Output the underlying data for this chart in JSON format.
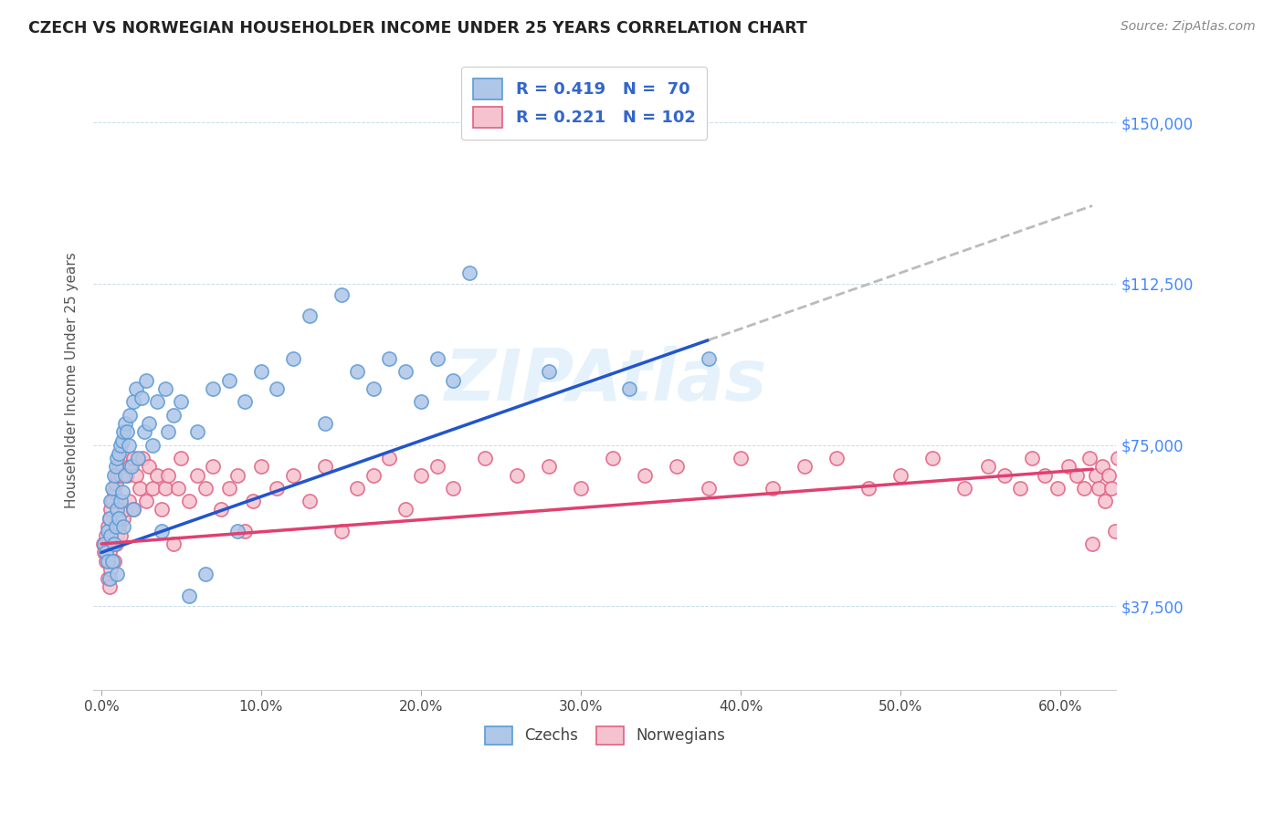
{
  "title": "CZECH VS NORWEGIAN HOUSEHOLDER INCOME UNDER 25 YEARS CORRELATION CHART",
  "source": "Source: ZipAtlas.com",
  "ylabel": "Householder Income Under 25 years",
  "xlabel_ticks": [
    "0.0%",
    "10.0%",
    "20.0%",
    "30.0%",
    "40.0%",
    "50.0%",
    "60.0%"
  ],
  "xlabel_vals": [
    0.0,
    0.1,
    0.2,
    0.3,
    0.4,
    0.5,
    0.6
  ],
  "ytick_labels": [
    "$37,500",
    "$75,000",
    "$112,500",
    "$150,000"
  ],
  "ytick_vals": [
    37500,
    75000,
    112500,
    150000
  ],
  "ymin": 18000,
  "ymax": 162000,
  "xmin": -0.005,
  "xmax": 0.635,
  "czechs_color": "#aec6e8",
  "czechs_edge": "#5b9bd5",
  "norwegians_color": "#f5c2cf",
  "norwegians_edge": "#e06080",
  "trend_czech_color": "#2255cc",
  "trend_norwegian_color": "#e04070",
  "trend_ext_color": "#bbbbbb",
  "watermark": "ZIPAtlas",
  "czechs_x": [
    0.002,
    0.003,
    0.004,
    0.004,
    0.005,
    0.005,
    0.006,
    0.006,
    0.007,
    0.007,
    0.008,
    0.008,
    0.009,
    0.009,
    0.01,
    0.01,
    0.01,
    0.011,
    0.011,
    0.012,
    0.012,
    0.013,
    0.013,
    0.014,
    0.014,
    0.015,
    0.015,
    0.016,
    0.017,
    0.018,
    0.019,
    0.02,
    0.02,
    0.022,
    0.023,
    0.025,
    0.027,
    0.028,
    0.03,
    0.032,
    0.035,
    0.038,
    0.04,
    0.042,
    0.045,
    0.05,
    0.055,
    0.06,
    0.065,
    0.07,
    0.08,
    0.085,
    0.09,
    0.1,
    0.11,
    0.12,
    0.13,
    0.14,
    0.15,
    0.16,
    0.17,
    0.18,
    0.19,
    0.2,
    0.21,
    0.22,
    0.23,
    0.28,
    0.33,
    0.38
  ],
  "czechs_y": [
    52000,
    50000,
    55000,
    48000,
    58000,
    44000,
    62000,
    54000,
    65000,
    48000,
    68000,
    52000,
    70000,
    56000,
    72000,
    60000,
    45000,
    73000,
    58000,
    75000,
    62000,
    76000,
    64000,
    78000,
    56000,
    80000,
    68000,
    78000,
    75000,
    82000,
    70000,
    85000,
    60000,
    88000,
    72000,
    86000,
    78000,
    90000,
    80000,
    75000,
    85000,
    55000,
    88000,
    78000,
    82000,
    85000,
    40000,
    78000,
    45000,
    88000,
    90000,
    55000,
    85000,
    92000,
    88000,
    95000,
    105000,
    80000,
    110000,
    92000,
    88000,
    95000,
    92000,
    85000,
    95000,
    90000,
    115000,
    92000,
    88000,
    95000
  ],
  "norwegians_x": [
    0.001,
    0.002,
    0.003,
    0.003,
    0.004,
    0.004,
    0.005,
    0.005,
    0.005,
    0.006,
    0.006,
    0.007,
    0.007,
    0.008,
    0.008,
    0.009,
    0.009,
    0.01,
    0.01,
    0.011,
    0.011,
    0.012,
    0.012,
    0.013,
    0.014,
    0.015,
    0.015,
    0.016,
    0.017,
    0.018,
    0.02,
    0.02,
    0.022,
    0.024,
    0.026,
    0.028,
    0.03,
    0.032,
    0.035,
    0.038,
    0.04,
    0.042,
    0.045,
    0.048,
    0.05,
    0.055,
    0.06,
    0.065,
    0.07,
    0.075,
    0.08,
    0.085,
    0.09,
    0.095,
    0.1,
    0.11,
    0.12,
    0.13,
    0.14,
    0.15,
    0.16,
    0.17,
    0.18,
    0.19,
    0.2,
    0.21,
    0.22,
    0.24,
    0.26,
    0.28,
    0.3,
    0.32,
    0.34,
    0.36,
    0.38,
    0.4,
    0.42,
    0.44,
    0.46,
    0.48,
    0.5,
    0.52,
    0.54,
    0.555,
    0.565,
    0.575,
    0.582,
    0.59,
    0.598,
    0.605,
    0.61,
    0.615,
    0.618,
    0.62,
    0.622,
    0.624,
    0.626,
    0.628,
    0.63,
    0.632,
    0.634,
    0.636
  ],
  "norwegians_y": [
    52000,
    50000,
    54000,
    48000,
    56000,
    44000,
    58000,
    50000,
    42000,
    60000,
    46000,
    62000,
    52000,
    64000,
    48000,
    66000,
    52000,
    68000,
    54000,
    70000,
    56000,
    68000,
    54000,
    70000,
    58000,
    72000,
    60000,
    68000,
    62000,
    70000,
    72000,
    60000,
    68000,
    65000,
    72000,
    62000,
    70000,
    65000,
    68000,
    60000,
    65000,
    68000,
    52000,
    65000,
    72000,
    62000,
    68000,
    65000,
    70000,
    60000,
    65000,
    68000,
    55000,
    62000,
    70000,
    65000,
    68000,
    62000,
    70000,
    55000,
    65000,
    68000,
    72000,
    60000,
    68000,
    70000,
    65000,
    72000,
    68000,
    70000,
    65000,
    72000,
    68000,
    70000,
    65000,
    72000,
    65000,
    70000,
    72000,
    65000,
    68000,
    72000,
    65000,
    70000,
    68000,
    65000,
    72000,
    68000,
    65000,
    70000,
    68000,
    65000,
    72000,
    52000,
    68000,
    65000,
    70000,
    62000,
    68000,
    65000,
    55000,
    72000
  ],
  "trend_czech_intercept": 50000,
  "trend_czech_slope": 130000,
  "trend_norw_intercept": 52000,
  "trend_norw_slope": 28000,
  "trend_czech_solid_end": 0.38,
  "trend_czech_ext_end": 0.62
}
